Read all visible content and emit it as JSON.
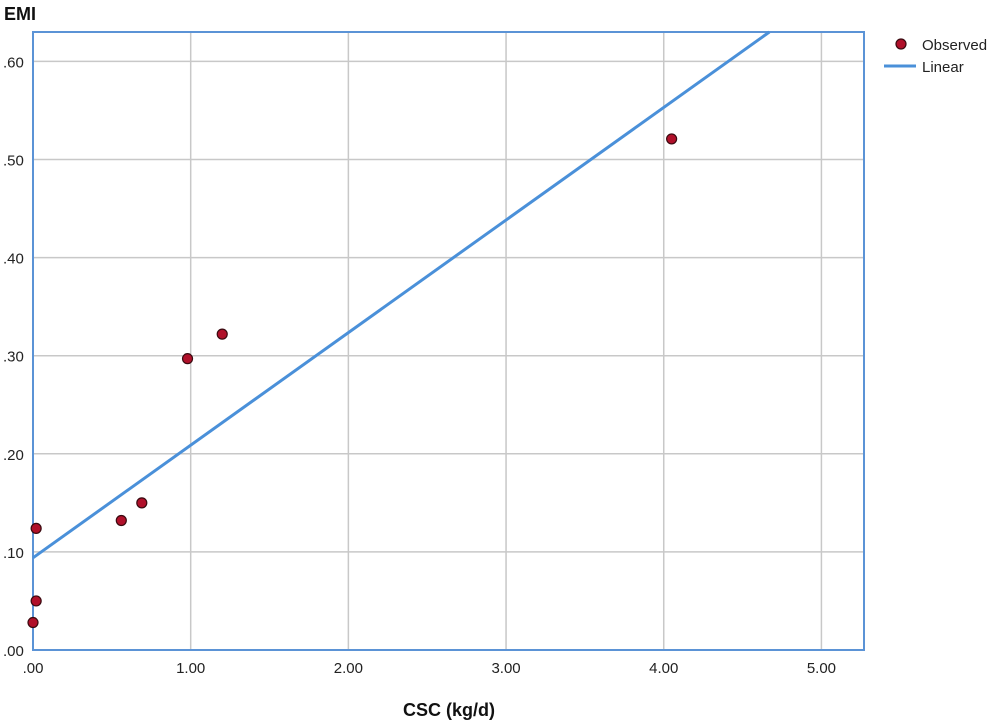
{
  "chart_data": {
    "type": "scatter",
    "ylabel": "EMI",
    "xlabel": "CSC (kg/d)",
    "xlim": [
      0,
      5.27
    ],
    "ylim": [
      0,
      0.63
    ],
    "x_ticks": [
      0,
      1,
      2,
      3,
      4,
      5
    ],
    "x_tick_labels": [
      ".00",
      "1.00",
      "2.00",
      "3.00",
      "4.00",
      "5.00"
    ],
    "y_ticks": [
      0,
      0.1,
      0.2,
      0.3,
      0.4,
      0.5,
      0.6
    ],
    "y_tick_labels": [
      ".00",
      ".10",
      ".20",
      ".30",
      ".40",
      ".50",
      ".60"
    ],
    "grid": true,
    "legend_position": "top-right",
    "colors": {
      "observed_fill": "#b0102a",
      "observed_stroke": "#3a0a10",
      "linear": "#4a90d9",
      "frame": "#5b93d6",
      "grid": "#c8c8c8"
    },
    "series": [
      {
        "name": "Observed",
        "kind": "scatter",
        "points": [
          {
            "x": 0.0,
            "y": 0.028
          },
          {
            "x": 0.02,
            "y": 0.05
          },
          {
            "x": 0.02,
            "y": 0.124
          },
          {
            "x": 0.56,
            "y": 0.132
          },
          {
            "x": 0.69,
            "y": 0.15
          },
          {
            "x": 0.98,
            "y": 0.297
          },
          {
            "x": 1.2,
            "y": 0.322
          },
          {
            "x": 4.05,
            "y": 0.521
          }
        ]
      },
      {
        "name": "Linear",
        "kind": "line",
        "points": [
          {
            "x": 0.0,
            "y": 0.094
          },
          {
            "x": 4.67,
            "y": 0.63
          }
        ]
      }
    ]
  }
}
